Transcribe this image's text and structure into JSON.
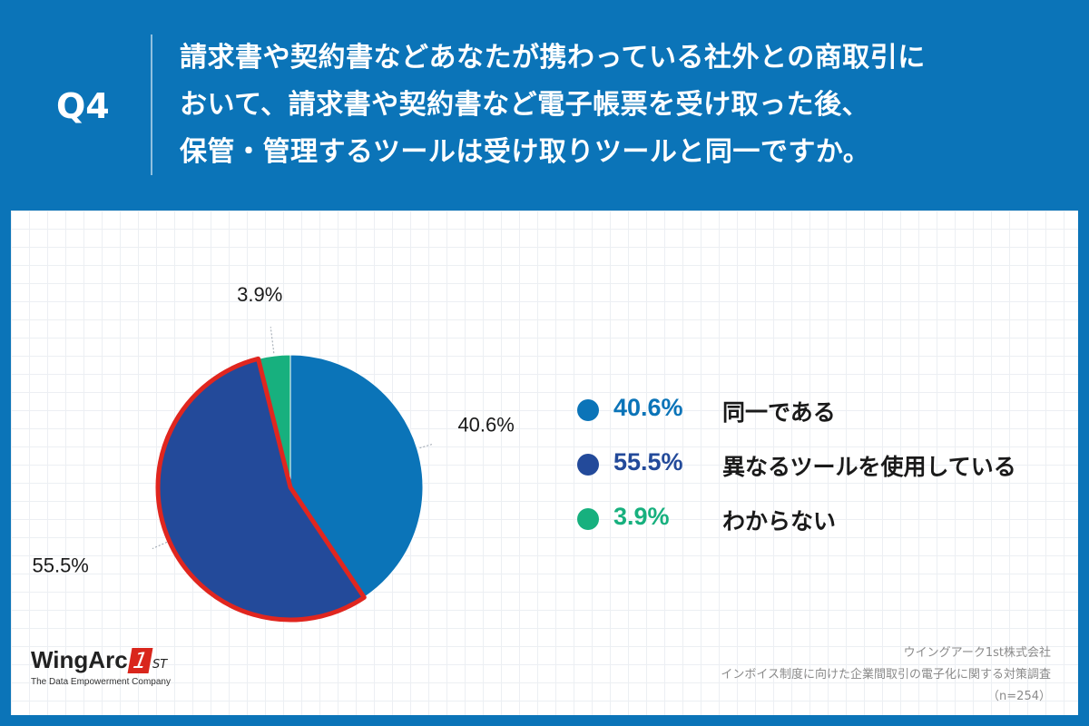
{
  "header": {
    "q_label": "Q4",
    "question_lines": [
      "請求書や契約書などあなたが携わっている社外との商取引に",
      "おいて、請求書や契約書など電子帳票を受け取った後、",
      "保管・管理するツールは受け取りツールと同一ですか。"
    ]
  },
  "chart_data": {
    "type": "pie",
    "title": "",
    "start": "top (12 o'clock), clockwise",
    "slices": [
      {
        "label": "同一である",
        "value": 40.6,
        "display": "40.6%",
        "color": "#0b74b8",
        "highlighted": false
      },
      {
        "label": "異なるツールを使用している",
        "value": 55.5,
        "display": "55.5%",
        "color": "#234a9a",
        "highlighted": true
      },
      {
        "label": "わからない",
        "value": 3.9,
        "display": "3.9%",
        "color": "#17b07e",
        "highlighted": false
      }
    ],
    "highlight_color": "#e0261f",
    "legend_position": "right"
  },
  "legend": {
    "items": [
      {
        "value": "40.6%",
        "label": "同一である",
        "color": "#0b74b8"
      },
      {
        "value": "55.5%",
        "label": "異なるツールを使用している",
        "color": "#234a9a"
      },
      {
        "value": "3.9%",
        "label": "わからない",
        "color": "#17b07e"
      }
    ]
  },
  "logo": {
    "name": "WingArc",
    "mark": "1",
    "suffix": "ST",
    "tagline": "The Data Empowerment Company"
  },
  "source": {
    "company": "ウイングアーク1st株式会社",
    "survey": "インボイス制度に向けた企業間取引の電子化に関する対策調査",
    "sample": "（n=254）"
  }
}
